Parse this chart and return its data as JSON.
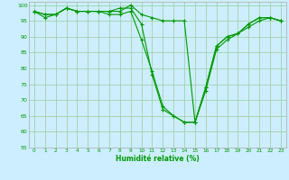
{
  "xlabel": "Humidité relative (%)",
  "background_color": "#cceeff",
  "grid_color": "#99cc99",
  "line_color": "#009900",
  "xlim": [
    -0.5,
    23.5
  ],
  "ylim": [
    55,
    101
  ],
  "yticks": [
    55,
    60,
    65,
    70,
    75,
    80,
    85,
    90,
    95,
    100
  ],
  "xticks": [
    0,
    1,
    2,
    3,
    4,
    5,
    6,
    7,
    8,
    9,
    10,
    11,
    12,
    13,
    14,
    15,
    16,
    17,
    18,
    19,
    20,
    21,
    22,
    23
  ],
  "series": [
    [
      98,
      96,
      97,
      99,
      98,
      98,
      98,
      98,
      98,
      100,
      97,
      96,
      95,
      95,
      95,
      63,
      73,
      86,
      89,
      91,
      93,
      95,
      96,
      95
    ],
    [
      98,
      97,
      97,
      99,
      98,
      98,
      98,
      98,
      99,
      99,
      94,
      78,
      67,
      65,
      63,
      63,
      74,
      87,
      90,
      91,
      94,
      96,
      96,
      95
    ],
    [
      98,
      97,
      97,
      99,
      98,
      98,
      98,
      97,
      97,
      98,
      89,
      79,
      68,
      65,
      63,
      63,
      74,
      87,
      90,
      91,
      94,
      96,
      96,
      95
    ]
  ]
}
